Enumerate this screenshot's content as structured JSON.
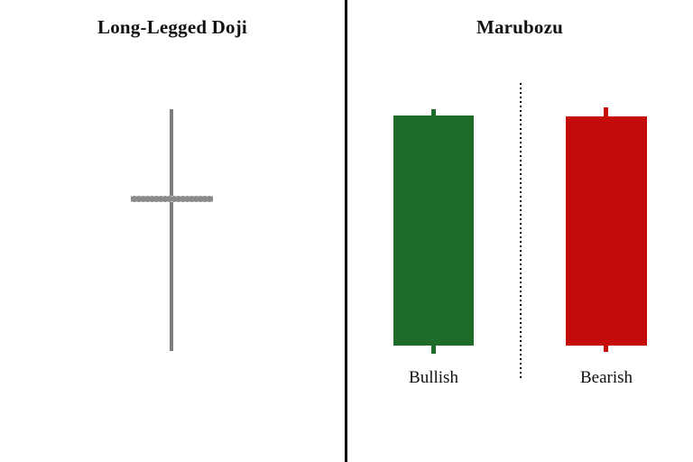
{
  "background_color": "#ffffff",
  "divider_color": "#000000",
  "panels": {
    "left": {
      "title": "Long-Legged Doji",
      "doji": {
        "wick_color": "#7d7d7d",
        "body_color": "#8a8a8a"
      }
    },
    "right": {
      "title": "Marubozu",
      "bullish": {
        "label": "Bullish",
        "color": "#1e6b2a"
      },
      "bearish": {
        "label": "Bearish",
        "color": "#c40a0a"
      }
    }
  }
}
